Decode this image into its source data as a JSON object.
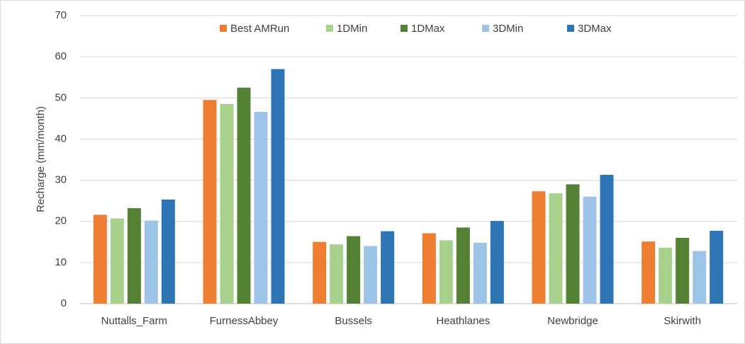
{
  "chart_data": {
    "type": "bar",
    "y_label": "Recharge (mm/month)",
    "categories": [
      "Nuttalls_Farm",
      "FurnessAbbey",
      "Bussels",
      "Heathlanes",
      "Newbridge",
      "Skirwith"
    ],
    "series": [
      {
        "name": "Best AMRun",
        "color": "#ed7d31",
        "values": [
          21.6,
          49.5,
          15.0,
          17.1,
          27.3,
          15.1
        ]
      },
      {
        "name": "1DMin",
        "color": "#a9d18e",
        "values": [
          20.7,
          48.5,
          14.4,
          15.4,
          26.8,
          13.6
        ]
      },
      {
        "name": "1DMax",
        "color": "#548235",
        "values": [
          23.2,
          52.5,
          16.4,
          18.5,
          29.0,
          16.0
        ]
      },
      {
        "name": "3DMin",
        "color": "#9dc3e6",
        "values": [
          20.2,
          46.6,
          14.0,
          14.8,
          26.0,
          12.8
        ]
      },
      {
        "name": "3DMax",
        "color": "#2e75b6",
        "values": [
          25.3,
          57.0,
          17.6,
          20.1,
          31.3,
          17.7
        ]
      }
    ],
    "ylim": [
      0,
      70
    ],
    "yticks": [
      0,
      10,
      20,
      30,
      40,
      50,
      60,
      70
    ],
    "grid": true,
    "legend": "top"
  }
}
